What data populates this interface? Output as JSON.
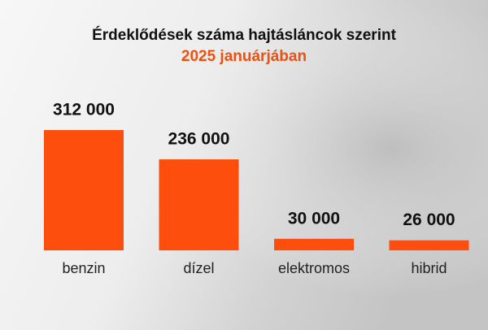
{
  "chart_data": {
    "type": "bar",
    "title": "Érdeklődések száma hajtásláncok szerint",
    "subtitle": "2025 januárjában",
    "categories": [
      "benzin",
      "dízel",
      "elektromos",
      "hibrid"
    ],
    "values": [
      312000,
      236000,
      30000,
      26000
    ],
    "value_labels": [
      "312 000",
      "236 000",
      "30 000",
      "26 000"
    ],
    "color": "#fd4e0d"
  }
}
